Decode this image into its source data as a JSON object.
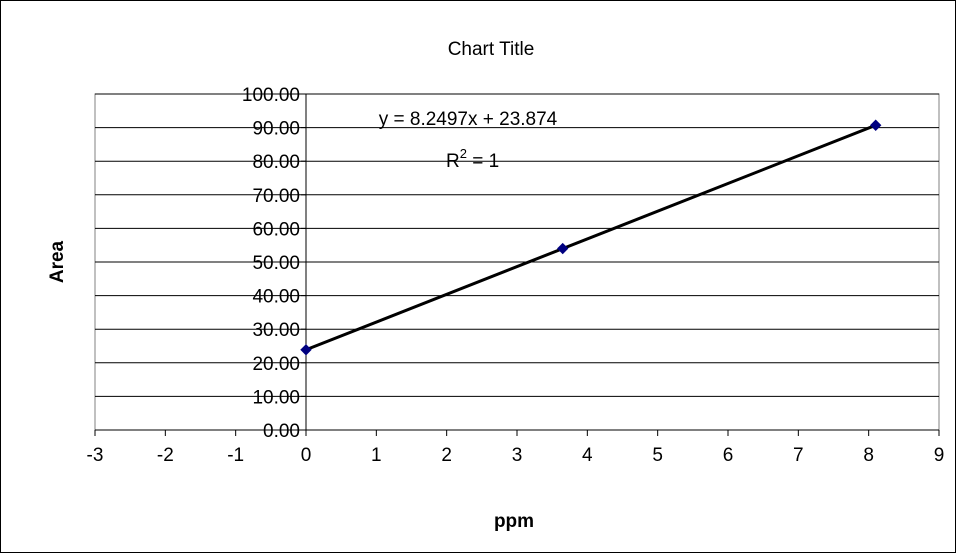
{
  "chart_data": {
    "type": "scatter",
    "title": "Chart Title",
    "xlabel": "ppm",
    "ylabel": "Area",
    "xlim": [
      -3,
      9
    ],
    "ylim": [
      0,
      100
    ],
    "x_ticks": [
      -3,
      -2,
      -1,
      0,
      1,
      2,
      3,
      4,
      5,
      6,
      7,
      8,
      9
    ],
    "y_ticks": [
      "0.00",
      "10.00",
      "20.00",
      "30.00",
      "40.00",
      "50.00",
      "60.00",
      "70.00",
      "80.00",
      "90.00",
      "100.00"
    ],
    "grid": "horizontal",
    "legend": "none",
    "series": [
      {
        "points": [
          {
            "x": 0,
            "y": 23.87
          },
          {
            "x": 3.65,
            "y": 54.0
          },
          {
            "x": 8.1,
            "y": 90.7
          }
        ],
        "marker": "diamond",
        "color": "#000080"
      }
    ],
    "trendline": {
      "slope": 8.2497,
      "intercept": 23.874,
      "equation": "y = 8.2497x + 23.874",
      "r2_prefix": "R",
      "r2_sup": "2",
      "r2_suffix": " = 1",
      "color": "#000000"
    }
  }
}
